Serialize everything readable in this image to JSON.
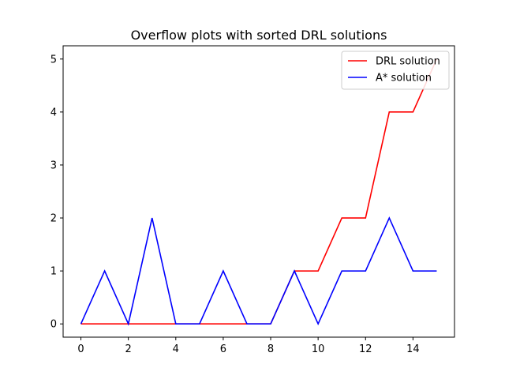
{
  "chart_data": {
    "type": "line",
    "title": "Overflow plots with sorted DRL solutions",
    "xlabel": "",
    "ylabel": "",
    "x": [
      0,
      1,
      2,
      3,
      4,
      5,
      6,
      7,
      8,
      9,
      10,
      11,
      12,
      13,
      14,
      15
    ],
    "series": [
      {
        "name": "DRL solution",
        "color": "#ff0000",
        "values": [
          0,
          0,
          0,
          0,
          0,
          0,
          0,
          0,
          0,
          1,
          1,
          2,
          2,
          4,
          4,
          5
        ]
      },
      {
        "name": "A* solution",
        "color": "#0000ff",
        "values": [
          0,
          1,
          0,
          2,
          0,
          0,
          1,
          0,
          0,
          1,
          0,
          1,
          1,
          2,
          1,
          1
        ]
      }
    ],
    "xlim": [
      -0.75,
      15.75
    ],
    "ylim": [
      -0.25,
      5.25
    ],
    "xticks": [
      0,
      2,
      4,
      6,
      8,
      10,
      12,
      14
    ],
    "yticks": [
      0,
      1,
      2,
      3,
      4,
      5
    ],
    "grid": false,
    "legend_position": "top-right"
  }
}
